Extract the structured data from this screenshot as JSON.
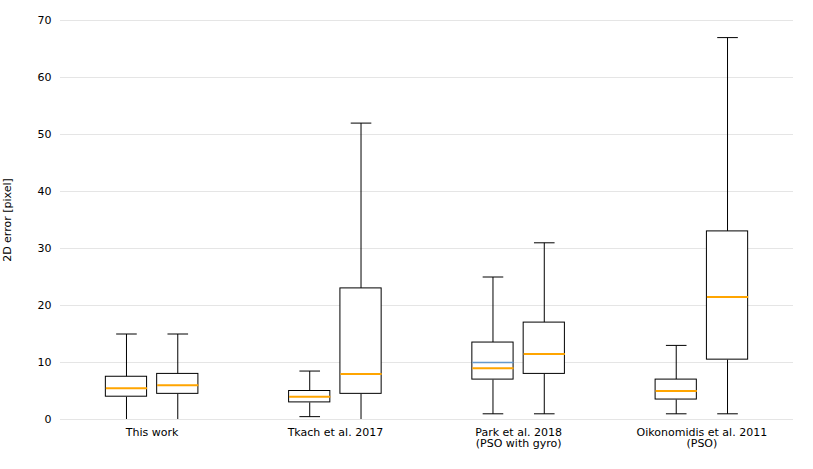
{
  "chart_data": {
    "type": "box",
    "ylabel": "2D error [pixel]",
    "categories": [
      "This work",
      "Tkach et al. 2017",
      "Park et al. 2018\n(PSO with gyro)",
      "Oikonomidis et al. 2011\n(PSO)"
    ],
    "values": [
      [
        {
          "whisker_low": 0.0,
          "q1": 4.0,
          "med": 5.5,
          "q3": 7.5,
          "whisker_high": 15.0
        },
        {
          "whisker_low": 0.0,
          "q1": 4.5,
          "med": 6.0,
          "q3": 8.0,
          "whisker_high": 15.0
        }
      ],
      [
        {
          "whisker_low": 0.5,
          "q1": 3.0,
          "med": 4.0,
          "q3": 5.0,
          "whisker_high": 8.5
        },
        {
          "whisker_low": 0.0,
          "q1": 4.5,
          "med": 8.0,
          "q3": 23.0,
          "whisker_high": 52.0
        }
      ],
      [
        {
          "whisker_low": 1.0,
          "q1": 7.0,
          "med": 9.0,
          "q3": 13.5,
          "whisker_high": 25.0,
          "med2": {
            "value": 10.0,
            "color": "#6699cc"
          }
        },
        {
          "whisker_low": 1.0,
          "q1": 8.0,
          "med": 11.5,
          "q3": 17.0,
          "whisker_high": 31.0
        }
      ],
      [
        {
          "whisker_low": 1.0,
          "q1": 3.5,
          "med": 5.0,
          "q3": 7.0,
          "whisker_high": 13.0
        },
        {
          "whisker_low": 1.0,
          "q1": 10.5,
          "med": 21.5,
          "q3": 33.0,
          "whisker_high": 67.0
        }
      ]
    ],
    "color": "#ffa500",
    "ylim": [
      0,
      70
    ],
    "yticks": [
      0,
      10,
      20,
      30,
      40,
      50,
      60,
      70
    ],
    "grid": true
  }
}
